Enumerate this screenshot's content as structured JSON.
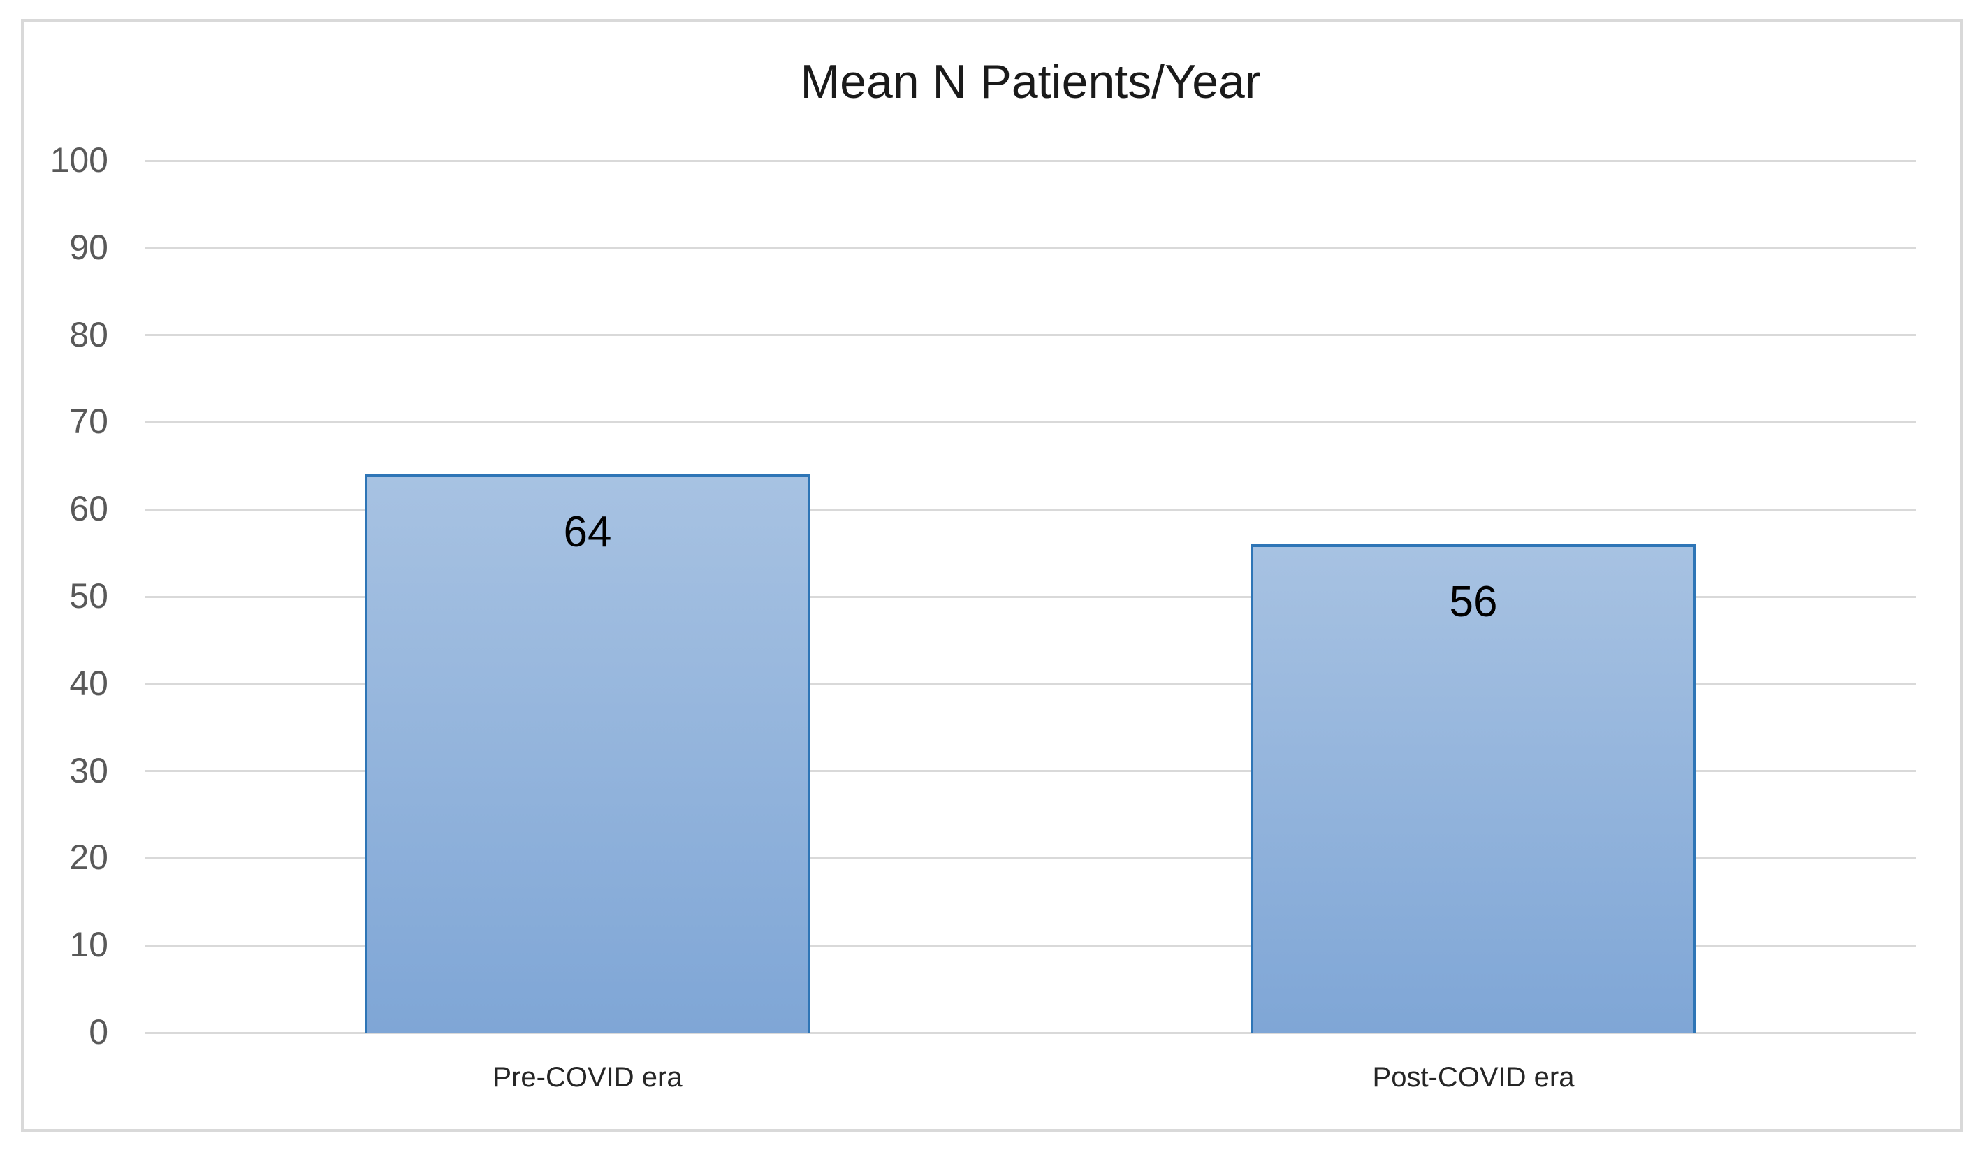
{
  "chart_data": {
    "type": "bar",
    "title": "Mean N Patients/Year",
    "categories": [
      "Pre-COVID era",
      "Post-COVID era"
    ],
    "values": [
      64,
      56
    ],
    "data_labels": [
      "64",
      "56"
    ],
    "xlabel": "",
    "ylabel": "",
    "ylim": [
      0,
      100
    ],
    "ytick_interval": 10,
    "yticks": [
      100,
      90,
      80,
      70,
      60,
      50,
      40,
      30,
      20,
      10,
      0
    ],
    "grid": "horizontal",
    "legend": "none",
    "colors": {
      "bar_fill_top": "#a7c2e2",
      "bar_fill_bottom": "#7fa6d6",
      "bar_border": "#2e75b6",
      "gridline": "#d9d9d9",
      "frame_border": "#d9d9d9",
      "title_text": "#1a1a1a",
      "ytick_text": "#595959",
      "xtick_text": "#262626",
      "value_label_text": "#000000"
    }
  }
}
